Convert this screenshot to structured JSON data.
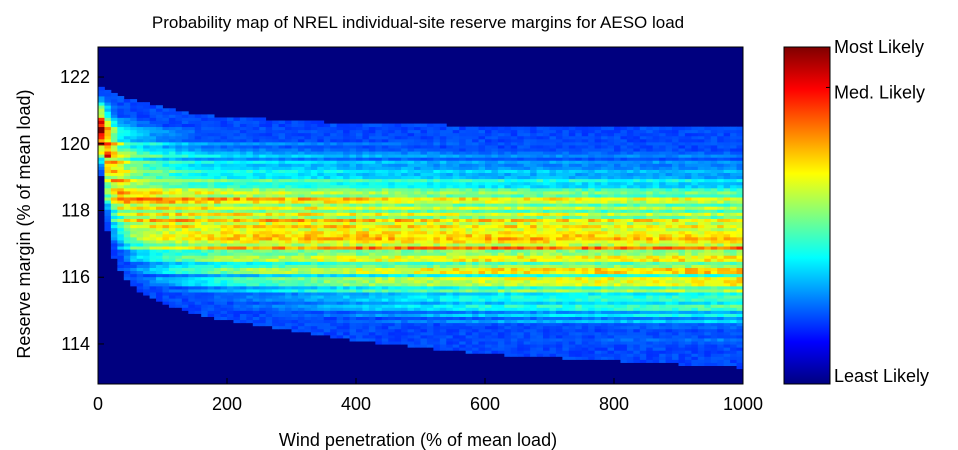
{
  "chart_data": {
    "type": "heatmap",
    "title": "Probability map of NREL individual-site reserve margins for AESO load",
    "xlabel": "Wind penetration (% of mean load)",
    "ylabel": "Reserve margin (% of mean load)",
    "xlim": [
      0,
      1000
    ],
    "ylim": [
      112.8,
      122.9
    ],
    "xticks": [
      0,
      200,
      400,
      600,
      800,
      1000
    ],
    "yticks": [
      114,
      116,
      118,
      120,
      122
    ],
    "colormap": "jet",
    "colors": {
      "background": "#00007f",
      "low": "#0000ff",
      "mid": "#00ffff",
      "high": "#ffff00",
      "higher": "#ff0000",
      "max": "#7f0000"
    },
    "colorbar_labels": [
      "Most Likely",
      "Med. Likely",
      "Least Likely"
    ],
    "colorbar_levels": [
      1.0,
      0.88,
      0.0
    ],
    "distribution": {
      "x": [
        0,
        10,
        20,
        40,
        60,
        100,
        150,
        200,
        300,
        400,
        500,
        600,
        700,
        800,
        900,
        1000
      ],
      "mode": [
        120.5,
        120.2,
        119.3,
        118.6,
        118.3,
        118.0,
        117.8,
        117.7,
        117.6,
        117.5,
        117.4,
        117.3,
        117.3,
        117.2,
        117.2,
        117.1
      ],
      "upper_edge": [
        121.7,
        121.7,
        121.6,
        121.4,
        121.3,
        121.1,
        120.9,
        120.8,
        120.7,
        120.6,
        120.6,
        120.5,
        120.5,
        120.5,
        120.5,
        120.5
      ],
      "lower_edge": [
        120.0,
        118.0,
        116.8,
        116.0,
        115.6,
        115.2,
        114.9,
        114.7,
        114.4,
        114.1,
        113.9,
        113.7,
        113.6,
        113.5,
        113.4,
        113.3
      ],
      "peak_density": [
        0.85,
        0.82,
        0.72,
        0.68,
        0.66,
        0.65,
        0.64,
        0.64,
        0.64,
        0.64,
        0.63,
        0.63,
        0.63,
        0.62,
        0.62,
        0.62
      ]
    }
  }
}
